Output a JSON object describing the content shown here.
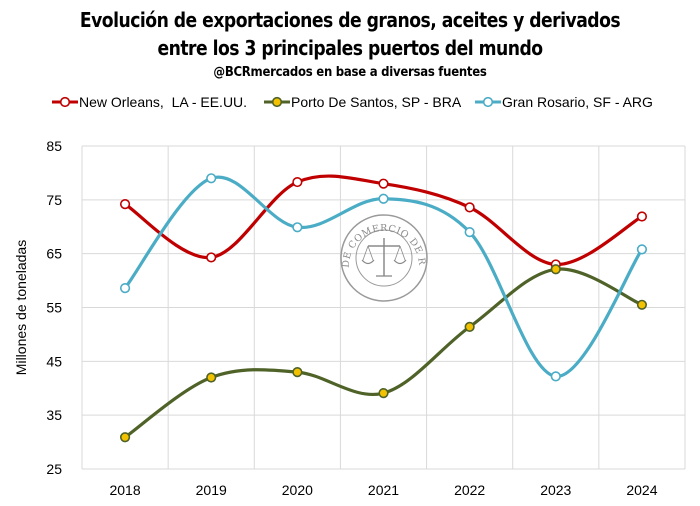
{
  "header": {
    "title_line1": "Evolución de exportaciones de granos, aceites y derivados",
    "title_line2": "entre los 3 principales puertos del mundo",
    "subtitle": "@BCRmercados en base a diversas fuentes"
  },
  "watermark": {
    "text": "BOLSA DE COMERCIO DE ROSARIO"
  },
  "chart_data": {
    "type": "line",
    "smooth": true,
    "title": "Evolución de exportaciones de granos, aceites y derivados entre los 3 principales puertos del mundo",
    "subtitle": "@BCRmercados en base a diversas fuentes",
    "xlabel": "",
    "ylabel": "Millones de toneladas",
    "ylim": [
      25,
      85
    ],
    "yticks": [
      25,
      35,
      45,
      55,
      65,
      75,
      85
    ],
    "grid": true,
    "legend_position": "top",
    "categories": [
      "2018",
      "2019",
      "2020",
      "2021",
      "2022",
      "2023",
      "2024"
    ],
    "series": [
      {
        "name": "New Orleans,  LA - EE.UU.",
        "color": "#C00000",
        "values": [
          74.2,
          64.3,
          78.3,
          78.0,
          73.6,
          63.0,
          71.9
        ]
      },
      {
        "name": "Porto De Santos, SP - BRA",
        "color": "#4F6228",
        "marker_fill": "#F2C200",
        "values": [
          30.9,
          42.0,
          43.0,
          39.1,
          51.4,
          62.1,
          55.5
        ]
      },
      {
        "name": "Gran Rosario, SF - ARG",
        "color": "#4BACC6",
        "values": [
          58.6,
          79.0,
          69.9,
          75.2,
          69.0,
          42.2,
          65.8
        ]
      }
    ]
  }
}
